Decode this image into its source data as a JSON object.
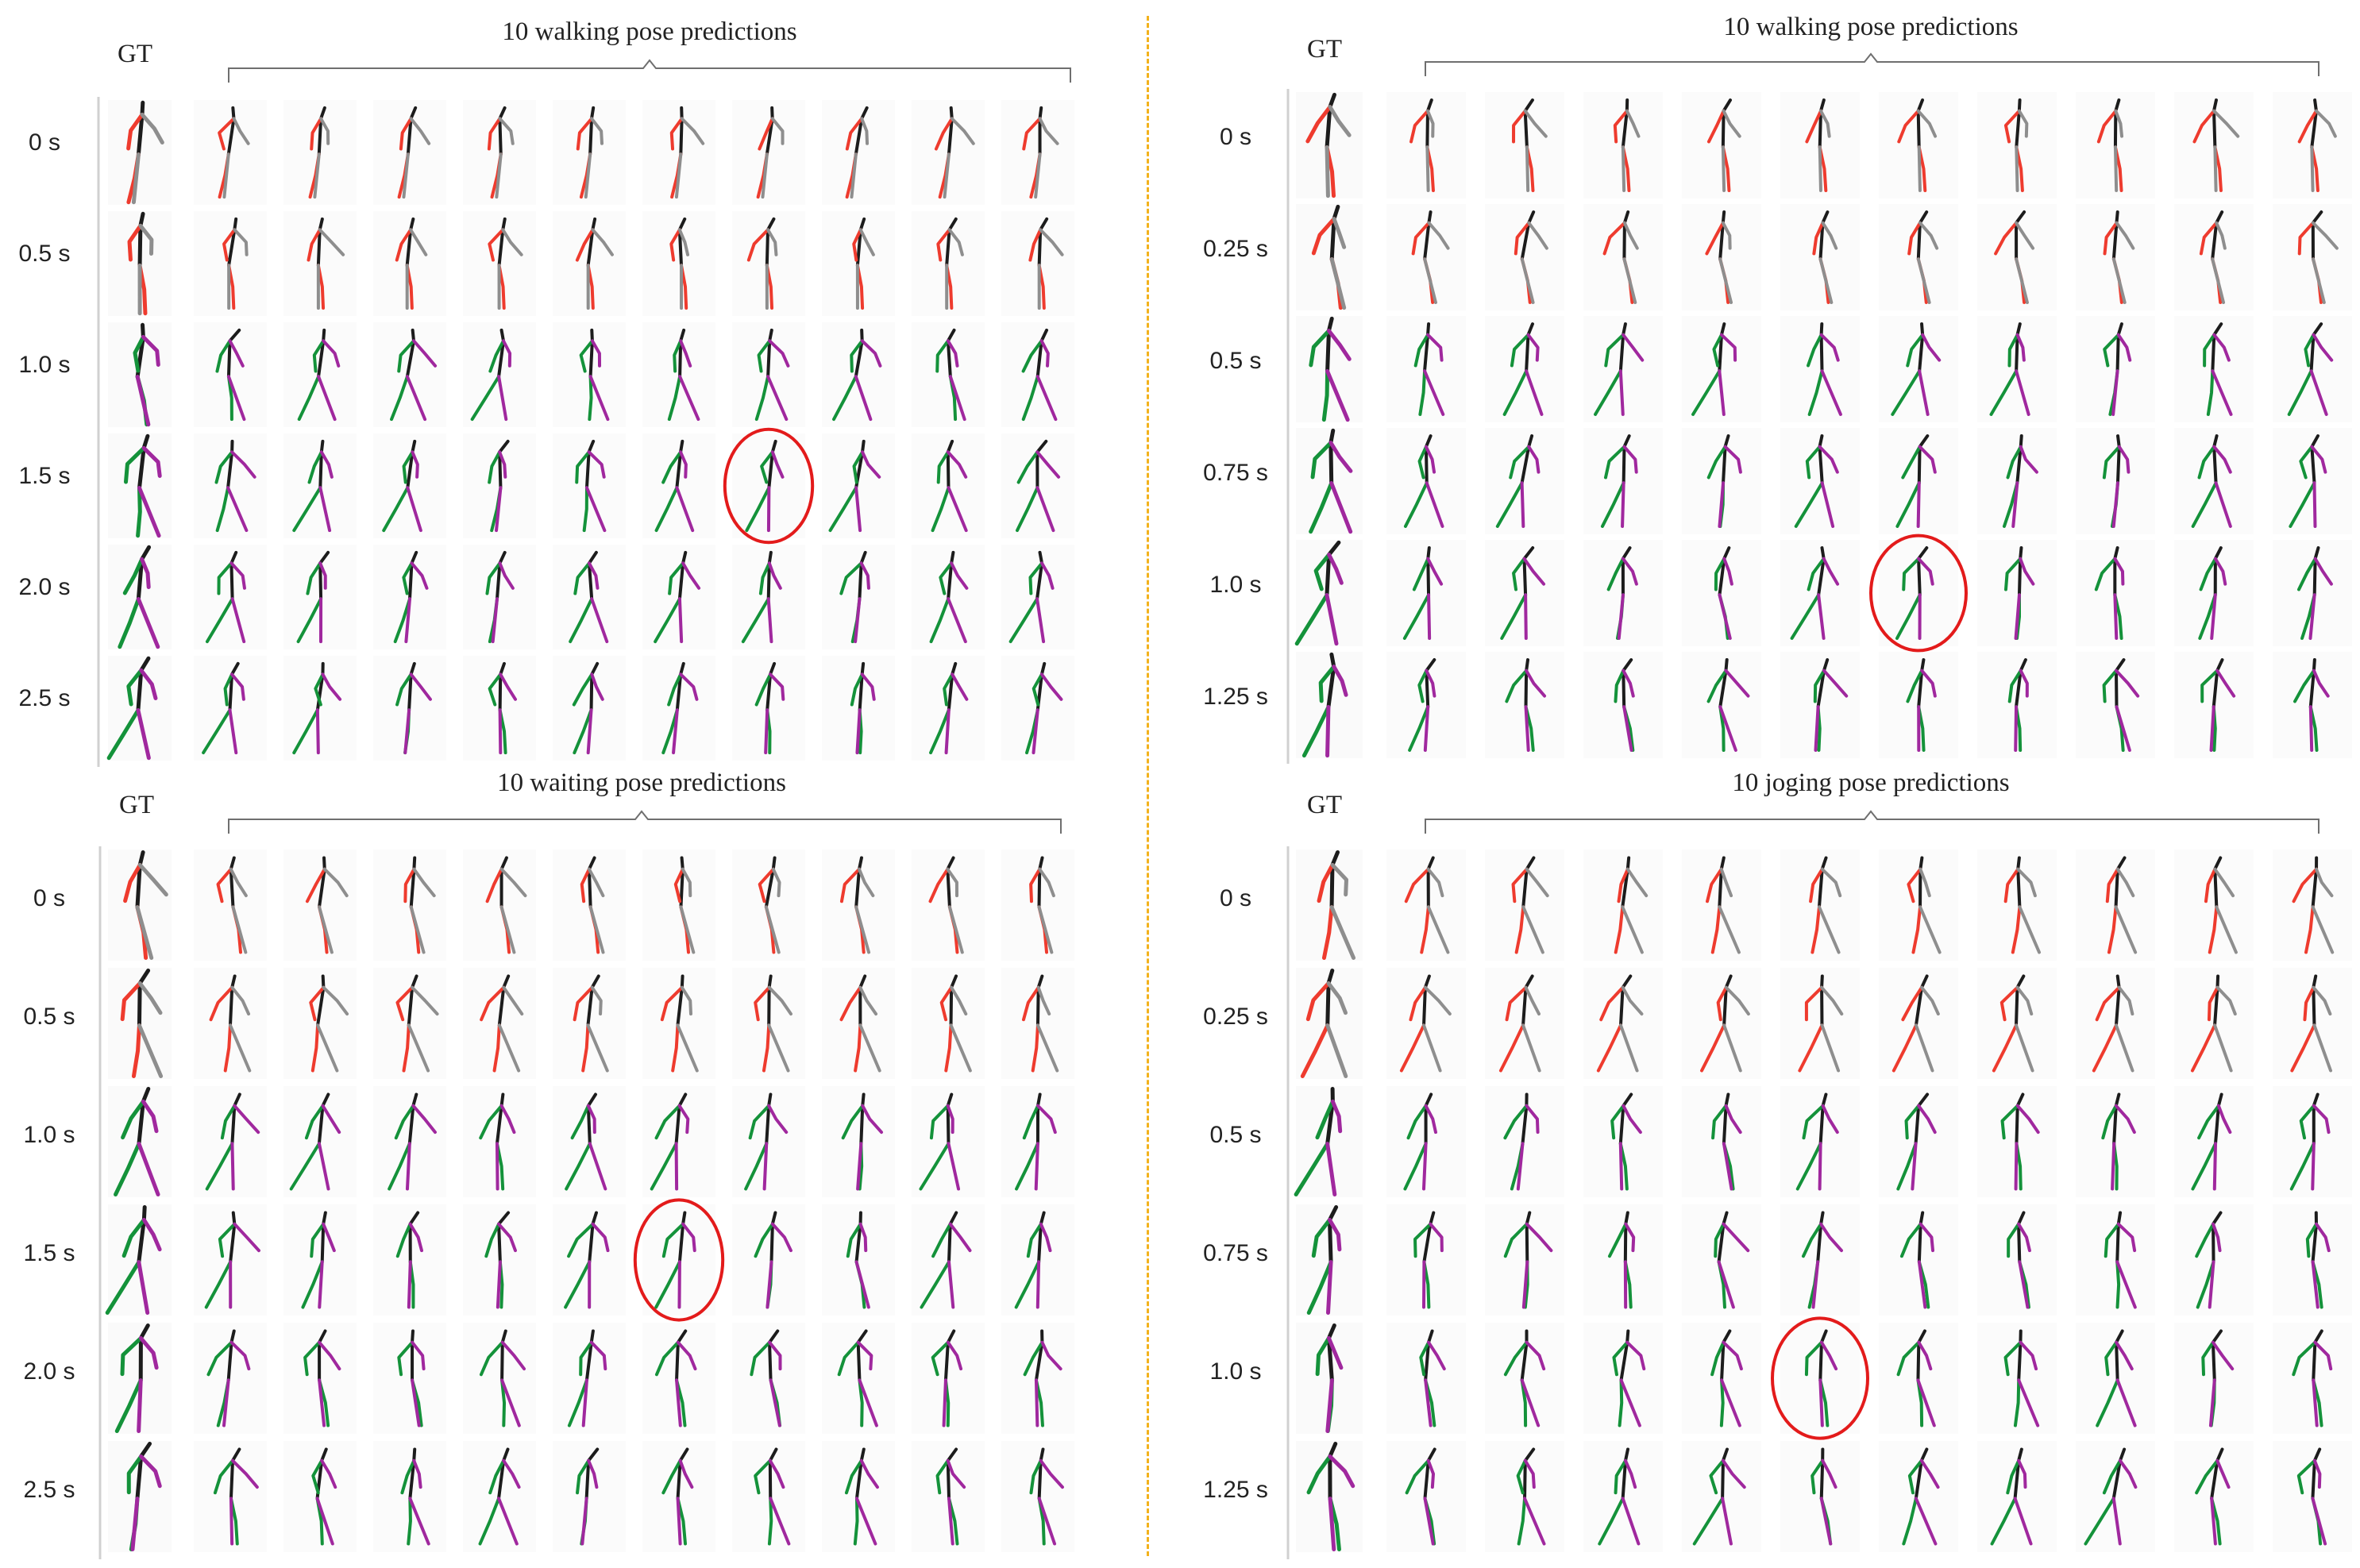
{
  "panels": [
    {
      "title": "10 walking pose predictions",
      "gt_label": "GT",
      "row_labels": [
        "0 s",
        "0.5 s",
        "1.0 s",
        "1.5 s",
        "2.0 s",
        "2.5 s"
      ],
      "highlight": {
        "row": 3,
        "col": 6
      }
    },
    {
      "title": "10 walking pose predictions",
      "gt_label": "GT",
      "row_labels": [
        "0 s",
        "0.25 s",
        "0.5 s",
        "0.75 s",
        "1.0 s",
        "1.25 s"
      ],
      "highlight": {
        "row": 4,
        "col": 5
      }
    },
    {
      "title": "10 waiting pose predictions",
      "gt_label": "GT",
      "row_labels": [
        "0 s",
        "0.5 s",
        "1.0 s",
        "1.5 s",
        "2.0 s",
        "2.5 s"
      ],
      "highlight": {
        "row": 3,
        "col": 5
      }
    },
    {
      "title": "10 joging pose predictions",
      "gt_label": "GT",
      "row_labels": [
        "0 s",
        "0.25 s",
        "0.5 s",
        "0.75 s",
        "1.0 s",
        "1.25 s"
      ],
      "highlight": {
        "row": 4,
        "col": 4
      }
    }
  ],
  "colors": {
    "observed_limb": "#ee3b2e",
    "observed_other": "#8e8e8e",
    "predicted_limb": "#14923a",
    "predicted_other": "#a0289e",
    "spine": "#1c1c1c",
    "highlight": "#e31b1b",
    "divider": "#f3b21c"
  }
}
